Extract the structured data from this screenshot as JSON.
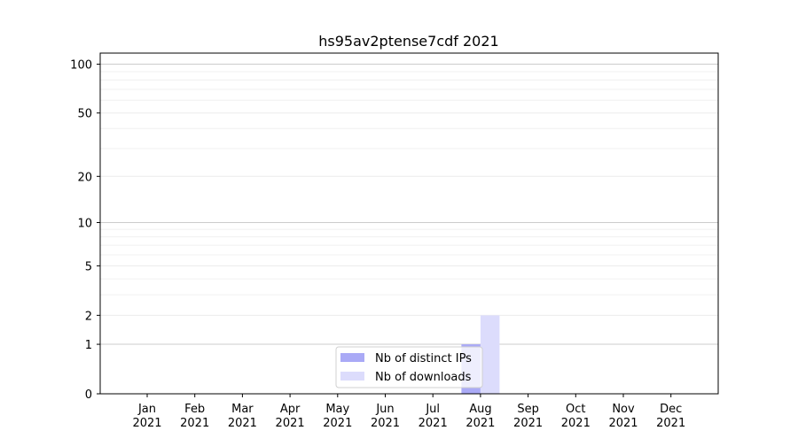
{
  "chart_data": {
    "type": "bar",
    "title": "hs95av2ptense7cdf 2021",
    "xlabel": "",
    "ylabel": "",
    "categories": [
      "Jan\n2021",
      "Feb\n2021",
      "Mar\n2021",
      "Apr\n2021",
      "May\n2021",
      "Jun\n2021",
      "Jul\n2021",
      "Aug\n2021",
      "Sep\n2021",
      "Oct\n2021",
      "Nov\n2021",
      "Dec\n2021"
    ],
    "tick_labels_month": [
      "Jan",
      "Feb",
      "Mar",
      "Apr",
      "May",
      "Jun",
      "Jul",
      "Aug",
      "Sep",
      "Oct",
      "Nov",
      "Dec"
    ],
    "tick_labels_year": "2021",
    "y_scale": "log(1+y)",
    "ylim": [
      0,
      117
    ],
    "y_ticks": [
      0,
      1,
      2,
      5,
      10,
      20,
      50,
      100
    ],
    "y_tick_labels": [
      "0",
      "1",
      "2",
      "5",
      "10",
      "20",
      "50",
      "100"
    ],
    "grid": "y major and minor",
    "legend_position": "lower center",
    "series": [
      {
        "name": "Nb of distinct IPs",
        "color": "#aaaaf6",
        "values": [
          0,
          0,
          0,
          0,
          0,
          0,
          0,
          1,
          0,
          0,
          0,
          0
        ]
      },
      {
        "name": "Nb of downloads",
        "color": "#dcdcfc",
        "values": [
          0,
          0,
          0,
          0,
          0,
          0,
          0,
          2,
          0,
          0,
          0,
          0
        ]
      }
    ]
  }
}
